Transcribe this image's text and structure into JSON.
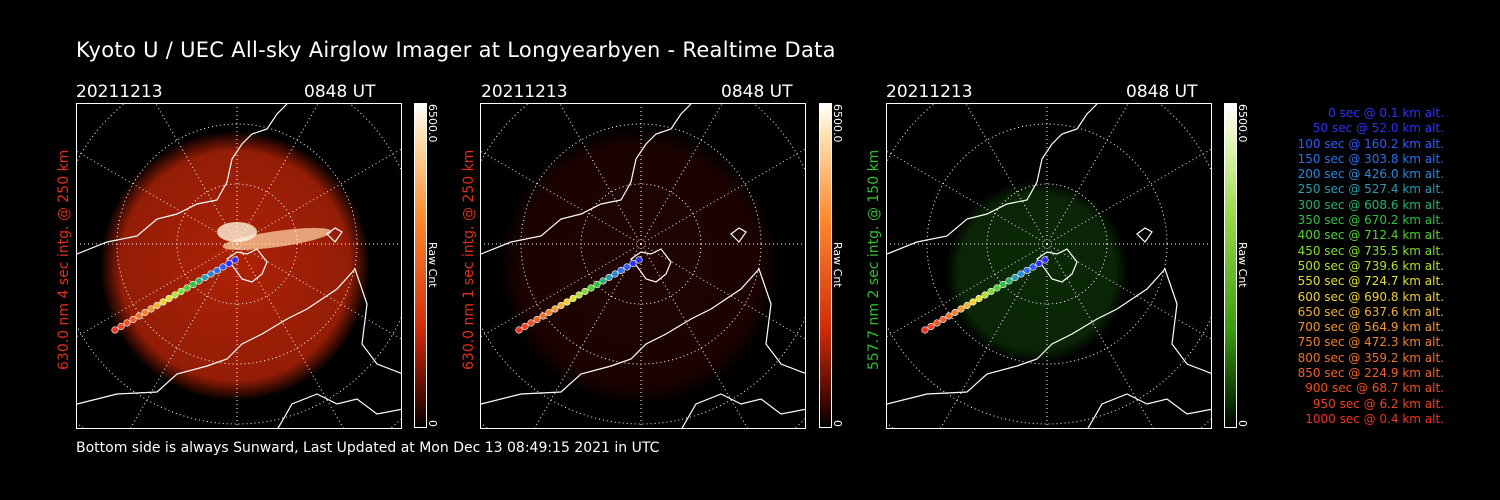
{
  "title": "Kyoto U / UEC All-sky Airglow Imager at Longyearbyen - Realtime Data",
  "footer": "Bottom side is always Sunward, Last Updated at Mon Dec 13 08:49:15 2021 in UTC",
  "panels": [
    {
      "date": "20211213",
      "time": "0848 UT",
      "side_label": "630.0 nm 4 sec intg. @ 250 km",
      "colorbar": {
        "max": "6500.0",
        "unit": "Raw Cnt",
        "min": "0"
      },
      "accent": "#e03018",
      "glow": "#d92a08",
      "glow_level": 0.8
    },
    {
      "date": "20211213",
      "time": "0848 UT",
      "side_label": "630.0 nm 1 sec intg. @ 250 km",
      "colorbar": {
        "max": "6500.0",
        "unit": "Raw Cnt",
        "min": "0"
      },
      "accent": "#e03018",
      "glow": "#6a0a04",
      "glow_level": 0.3
    },
    {
      "date": "20211213",
      "time": "0848 UT",
      "side_label": "557.7 nm 2 sec intg. @ 150 km",
      "colorbar": {
        "max": "6500.0",
        "unit": "Raw Cnt",
        "min": "0"
      },
      "accent": "#30c030",
      "glow": "#1c6a10",
      "glow_level": 0.4
    }
  ],
  "legend": [
    {
      "text": "0 sec @    0.1 km alt.",
      "color": "#3030ff"
    },
    {
      "text": "50 sec @   52.0 km alt.",
      "color": "#3030ff"
    },
    {
      "text": "100 sec @  160.2 km alt.",
      "color": "#2e5cff"
    },
    {
      "text": "150 sec @  303.8 km alt.",
      "color": "#2a70f0"
    },
    {
      "text": "200 sec @  426.0 km alt.",
      "color": "#2a88d8"
    },
    {
      "text": "250 sec @  527.4 km alt.",
      "color": "#289cb0"
    },
    {
      "text": "300 sec @  608.6 km alt.",
      "color": "#28b070"
    },
    {
      "text": "350 sec @  670.2 km alt.",
      "color": "#30c040"
    },
    {
      "text": "400 sec @  712.4 km alt.",
      "color": "#50d030"
    },
    {
      "text": "450 sec @  735.5 km alt.",
      "color": "#80dc30"
    },
    {
      "text": "500 sec @  739.6 km alt.",
      "color": "#b0e030"
    },
    {
      "text": "550 sec @  724.7 km alt.",
      "color": "#e0e030"
    },
    {
      "text": "600 sec @  690.8 km alt.",
      "color": "#f0d030"
    },
    {
      "text": "650 sec @  637.6 km alt.",
      "color": "#f0b030"
    },
    {
      "text": "700 sec @  564.9 km alt.",
      "color": "#f09830"
    },
    {
      "text": "750 sec @  472.3 km alt.",
      "color": "#f08030"
    },
    {
      "text": "800 sec @  359.2 km alt.",
      "color": "#f07028"
    },
    {
      "text": "850 sec @  224.9 km alt.",
      "color": "#f06028"
    },
    {
      "text": "900 sec @   68.7 km alt.",
      "color": "#f05020"
    },
    {
      "text": "950 sec @    6.2 km alt.",
      "color": "#f04020"
    },
    {
      "text": "1000 sec @    0.4 km alt.",
      "color": "#f03020"
    }
  ]
}
